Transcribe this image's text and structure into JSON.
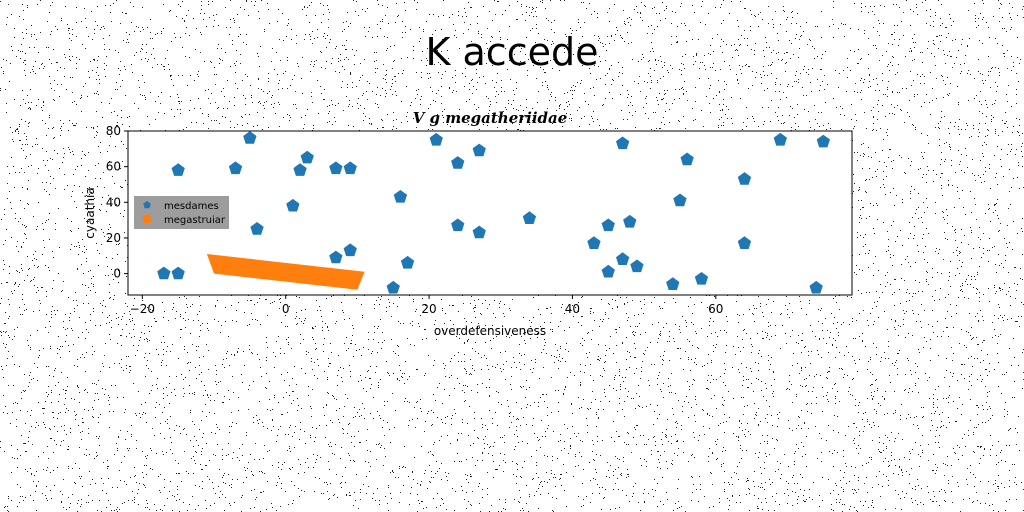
{
  "page_title": "K accede",
  "chart_data": {
    "type": "scatter",
    "title": "V g megatheriidae",
    "xlabel": "overdefensiveness",
    "ylabel": "cyaathia",
    "xlim": [
      -22,
      79
    ],
    "ylim": [
      -12,
      80
    ],
    "xticks": [
      -20,
      0,
      20,
      40,
      60
    ],
    "yticks": [
      0,
      20,
      40,
      60,
      80
    ],
    "legend_position": "center-left",
    "series": [
      {
        "name": "mesdames",
        "color": "#1f77b4",
        "marker": "pentagon",
        "x": [
          -17,
          -15,
          -15,
          -7,
          -5,
          -4,
          1,
          2,
          3,
          7,
          7,
          9,
          9,
          15,
          16,
          17,
          21,
          24,
          24,
          27,
          27,
          34,
          43,
          45,
          45,
          47,
          47,
          48,
          49,
          54,
          55,
          56,
          58,
          64,
          64,
          69,
          74,
          75
        ],
        "y": [
          0,
          0,
          58,
          59,
          76,
          25,
          38,
          58,
          65,
          59,
          9,
          59,
          13,
          -8,
          43,
          6,
          75,
          27,
          62,
          23,
          69,
          31,
          17,
          27,
          1,
          73,
          8,
          29,
          4,
          -6,
          41,
          64,
          -3,
          17,
          53,
          75,
          -8,
          74
        ]
      },
      {
        "name": "megastruiar",
        "color": "#ff7f0e",
        "marker": "filled-polygon",
        "polygon": [
          [
            -11,
            11
          ],
          [
            11,
            1
          ],
          [
            10,
            -9
          ],
          [
            -10,
            0
          ]
        ]
      }
    ]
  }
}
